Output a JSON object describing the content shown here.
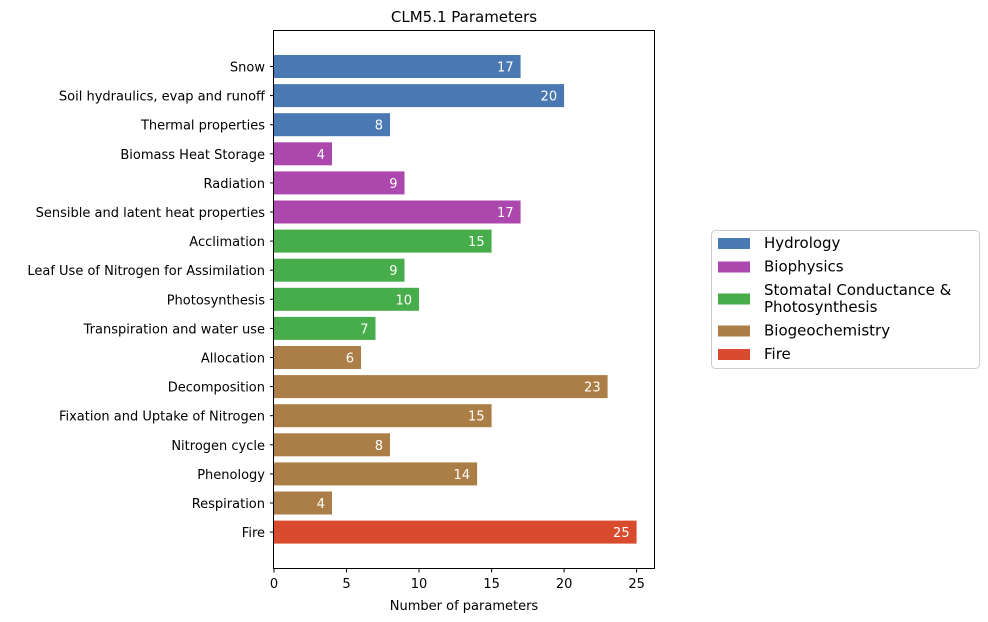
{
  "chart_data": {
    "type": "bar",
    "orientation": "horizontal",
    "title": "CLM5.1 Parameters",
    "xlabel": "Number of parameters",
    "ylabel": "",
    "xlim": [
      0,
      26.2
    ],
    "xticks": [
      0,
      5,
      10,
      15,
      20,
      25
    ],
    "grid": false,
    "legend_position": "right",
    "groups": [
      {
        "name": "Hydrology",
        "color": "#4a78b2"
      },
      {
        "name": "Biophysics",
        "color": "#ab47ad"
      },
      {
        "name": "Stomatal Conductance & Photosynthesis",
        "name_lines": [
          "Stomatal Conductance &",
          "Photosynthesis"
        ],
        "color": "#47ad4a"
      },
      {
        "name": "Biogeochemistry",
        "color": "#ac7e47"
      },
      {
        "name": "Fire",
        "color": "#d94b2e"
      }
    ],
    "categories": [
      "Snow",
      "Soil hydraulics, evap and runoff",
      "Thermal properties",
      "Biomass Heat Storage",
      "Radiation",
      "Sensible and latent heat properties",
      "Acclimation",
      "Leaf Use of Nitrogen for Assimilation",
      "Photosynthesis",
      "Transpiration and water use",
      "Allocation",
      "Decomposition",
      "Fixation and Uptake of Nitrogen",
      "Nitrogen cycle",
      "Phenology",
      "Respiration",
      "Fire"
    ],
    "values": [
      17,
      20,
      8,
      4,
      9,
      17,
      15,
      9,
      10,
      7,
      6,
      23,
      15,
      8,
      14,
      4,
      25
    ],
    "group_index": [
      0,
      0,
      0,
      1,
      1,
      1,
      2,
      2,
      2,
      2,
      3,
      3,
      3,
      3,
      3,
      3,
      4
    ]
  }
}
